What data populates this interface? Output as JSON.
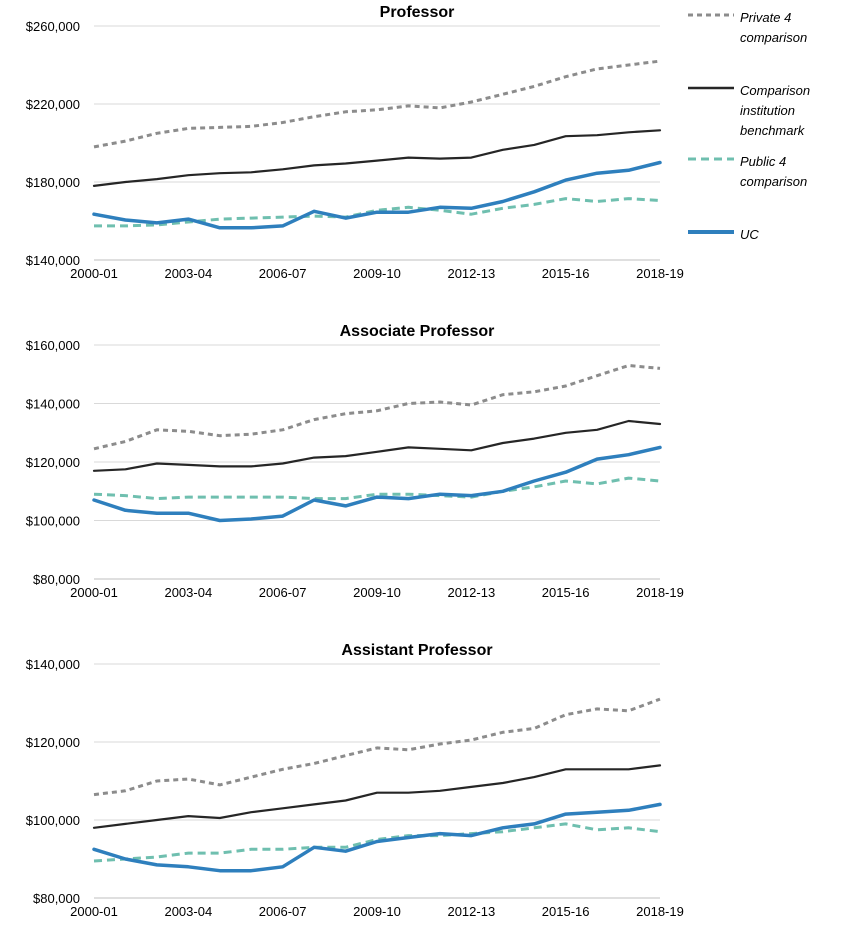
{
  "chart_data": [
    {
      "type": "line",
      "title": "Professor",
      "x": [
        "2000-01",
        "2001-02",
        "2002-03",
        "2003-04",
        "2004-05",
        "2005-06",
        "2006-07",
        "2007-08",
        "2008-09",
        "2009-10",
        "2010-11",
        "2011-12",
        "2012-13",
        "2013-14",
        "2014-15",
        "2015-16",
        "2016-17",
        "2017-18",
        "2018-19"
      ],
      "xticks": [
        "2000-01",
        "2003-04",
        "2006-07",
        "2009-10",
        "2012-13",
        "2015-16",
        "2018-19"
      ],
      "ylim": [
        140000,
        260000
      ],
      "yticks": [
        "$140,000",
        "$180,000",
        "$220,000",
        "$260,000"
      ],
      "ytick_values": [
        140000,
        180000,
        220000,
        260000
      ],
      "grid": "horizontal",
      "series": [
        {
          "name": "Private 4 comparison",
          "values": [
            198000,
            201000,
            205000,
            207500,
            208000,
            208500,
            210500,
            213500,
            216000,
            217000,
            219000,
            218000,
            221000,
            225000,
            229000,
            234000,
            238000,
            240000,
            242000
          ]
        },
        {
          "name": "Comparison institution benchmark",
          "values": [
            178000,
            180000,
            181500,
            183500,
            184500,
            185000,
            186500,
            188500,
            189500,
            191000,
            192500,
            192000,
            192500,
            196500,
            199000,
            203500,
            204000,
            205500,
            206500
          ]
        },
        {
          "name": "Public 4 comparison",
          "values": [
            157500,
            157500,
            158000,
            159500,
            161000,
            161500,
            162000,
            162500,
            162000,
            165500,
            167000,
            165500,
            163500,
            166500,
            168500,
            171500,
            170000,
            171500,
            170500
          ]
        },
        {
          "name": "UC",
          "values": [
            163500,
            160500,
            159000,
            161000,
            156500,
            156500,
            157500,
            165000,
            161500,
            164500,
            164500,
            167000,
            166500,
            170000,
            175000,
            181000,
            184500,
            186000,
            190000
          ]
        }
      ]
    },
    {
      "type": "line",
      "title": "Associate Professor",
      "x": [
        "2000-01",
        "2001-02",
        "2002-03",
        "2003-04",
        "2004-05",
        "2005-06",
        "2006-07",
        "2007-08",
        "2008-09",
        "2009-10",
        "2010-11",
        "2011-12",
        "2012-13",
        "2013-14",
        "2014-15",
        "2015-16",
        "2016-17",
        "2017-18",
        "2018-19"
      ],
      "xticks": [
        "2000-01",
        "2003-04",
        "2006-07",
        "2009-10",
        "2012-13",
        "2015-16",
        "2018-19"
      ],
      "ylim": [
        80000,
        160000
      ],
      "yticks": [
        "$80,000",
        "$100,000",
        "$120,000",
        "$140,000",
        "$160,000"
      ],
      "ytick_values": [
        80000,
        100000,
        120000,
        140000,
        160000
      ],
      "grid": "horizontal",
      "series": [
        {
          "name": "Private 4 comparison",
          "values": [
            124500,
            127000,
            131000,
            130500,
            129000,
            129500,
            131000,
            134500,
            136500,
            137500,
            140000,
            140500,
            139500,
            143000,
            144000,
            146000,
            149500,
            153000,
            152000
          ]
        },
        {
          "name": "Comparison institution benchmark",
          "values": [
            117000,
            117500,
            119500,
            119000,
            118500,
            118500,
            119500,
            121500,
            122000,
            123500,
            125000,
            124500,
            124000,
            126500,
            128000,
            130000,
            131000,
            134000,
            133000
          ]
        },
        {
          "name": "Public 4 comparison",
          "values": [
            109000,
            108500,
            107500,
            108000,
            108000,
            108000,
            108000,
            107500,
            107500,
            109000,
            109000,
            108500,
            108000,
            110000,
            111500,
            113500,
            112500,
            114500,
            113500
          ]
        },
        {
          "name": "UC",
          "values": [
            107000,
            103500,
            102500,
            102500,
            100000,
            100500,
            101500,
            107000,
            105000,
            108000,
            107500,
            109000,
            108500,
            110000,
            113500,
            116500,
            121000,
            122500,
            125000
          ]
        }
      ]
    },
    {
      "type": "line",
      "title": "Assistant Professor",
      "x": [
        "2000-01",
        "2001-02",
        "2002-03",
        "2003-04",
        "2004-05",
        "2005-06",
        "2006-07",
        "2007-08",
        "2008-09",
        "2009-10",
        "2010-11",
        "2011-12",
        "2012-13",
        "2013-14",
        "2014-15",
        "2015-16",
        "2016-17",
        "2017-18",
        "2018-19"
      ],
      "xticks": [
        "2000-01",
        "2003-04",
        "2006-07",
        "2009-10",
        "2012-13",
        "2015-16",
        "2018-19"
      ],
      "ylim": [
        80000,
        140000
      ],
      "yticks": [
        "$80,000",
        "$100,000",
        "$120,000",
        "$140,000"
      ],
      "ytick_values": [
        80000,
        100000,
        120000,
        140000
      ],
      "grid": "horizontal",
      "series": [
        {
          "name": "Private 4 comparison",
          "values": [
            106500,
            107500,
            110000,
            110500,
            109000,
            111000,
            113000,
            114500,
            116500,
            118500,
            118000,
            119500,
            120500,
            122500,
            123500,
            127000,
            128500,
            128000,
            131000
          ]
        },
        {
          "name": "Comparison institution benchmark",
          "values": [
            98000,
            99000,
            100000,
            101000,
            100500,
            102000,
            103000,
            104000,
            105000,
            107000,
            107000,
            107500,
            108500,
            109500,
            111000,
            113000,
            113000,
            113000,
            114000
          ]
        },
        {
          "name": "Public 4 comparison",
          "values": [
            89500,
            90000,
            90500,
            91500,
            91500,
            92500,
            92500,
            93000,
            93000,
            95000,
            96000,
            96000,
            96500,
            97000,
            98000,
            99000,
            97500,
            98000,
            97000
          ]
        },
        {
          "name": "UC",
          "values": [
            92500,
            90000,
            88500,
            88000,
            87000,
            87000,
            88000,
            93000,
            92000,
            94500,
            95500,
            96500,
            96000,
            98000,
            99000,
            101500,
            102000,
            102500,
            104000
          ]
        }
      ]
    }
  ],
  "styles": {
    "Private 4 comparison": {
      "color": "#8c8c8c",
      "dash": "dashed"
    },
    "Comparison institution benchmark": {
      "color": "#262626",
      "dash": "solid"
    },
    "Public 4 comparison": {
      "color": "#6fbfaf",
      "dash": "dashed"
    },
    "UC": {
      "color": "#2e7fbd",
      "dash": "solid"
    }
  },
  "legend": {
    "items": [
      {
        "label": "Private 4 comparison",
        "icon": "gray-dashed-line"
      },
      {
        "label": "Comparison institution benchmark",
        "icon": "black-solid-line"
      },
      {
        "label": "Public 4 comparison",
        "icon": "teal-dashed-line"
      },
      {
        "label": "UC",
        "icon": "blue-solid-line"
      }
    ]
  }
}
